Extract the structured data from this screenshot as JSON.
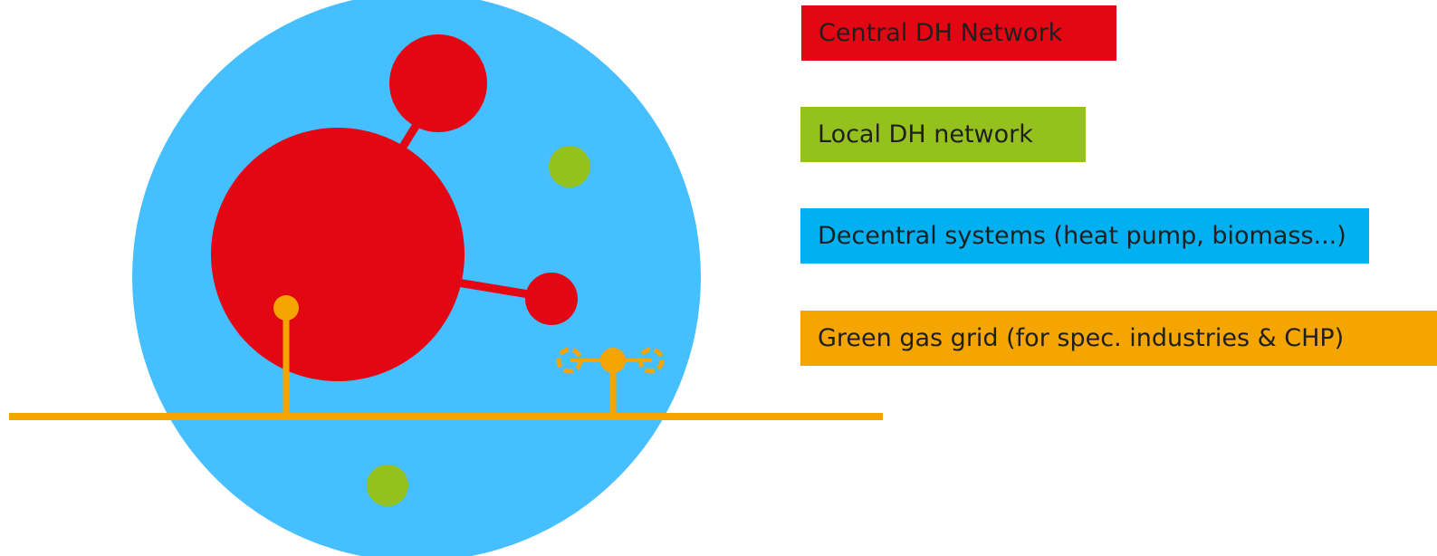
{
  "colors": {
    "central_dh": "#e30613",
    "local_dh": "#95c11f",
    "decentral": "#45bfff",
    "decentral_legend": "#00b0f0",
    "green_gas": "#f5a500"
  },
  "legend": [
    {
      "key": "central",
      "label": "Central DH Network",
      "color_key": "central_dh"
    },
    {
      "key": "local",
      "label": "Local DH network",
      "color_key": "local_dh"
    },
    {
      "key": "decentral",
      "label": "Decentral systems (heat pump, biomass...)",
      "color_key": "decentral_legend"
    },
    {
      "key": "gas",
      "label": "Green gas grid (for spec. industries & CHP)",
      "color_key": "green_gas"
    }
  ]
}
